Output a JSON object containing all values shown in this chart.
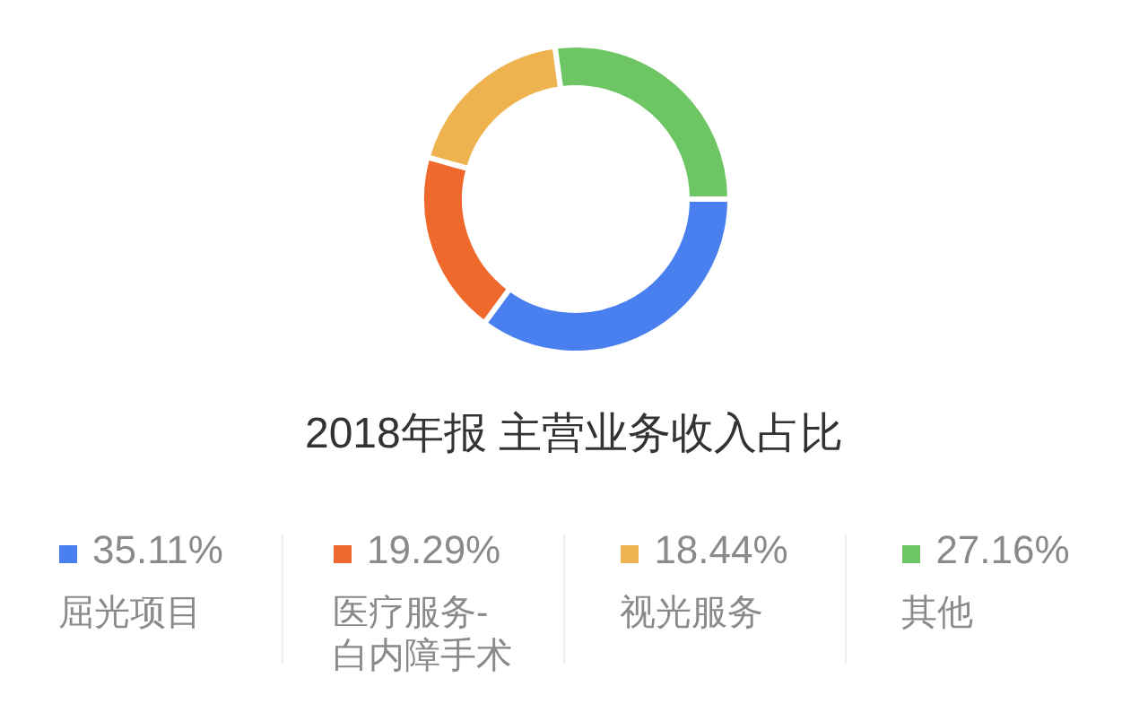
{
  "chart_data": {
    "type": "donut",
    "title": "2018年报 主营业务收入占比",
    "categories": [
      "屈光项目",
      "医疗服务-白内障手术",
      "视光服务",
      "其他"
    ],
    "values": [
      35.11,
      19.29,
      18.44,
      27.16
    ],
    "colors": [
      "#4a7fef",
      "#f0692c",
      "#eeb34f",
      "#6dc663"
    ],
    "value_labels": [
      "35.11%",
      "19.29%",
      "18.44%",
      "27.16%"
    ],
    "legend": "bottom"
  }
}
